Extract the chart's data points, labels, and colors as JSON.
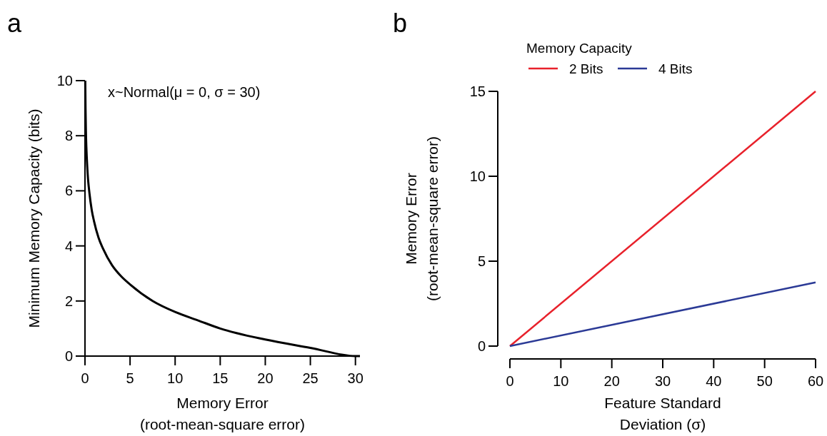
{
  "chart_data": [
    {
      "type": "line",
      "title": "a",
      "xlabel": "Memory Error\n(root-mean-square error)",
      "ylabel": "Minimum Memory Capacity (bits)",
      "annotations": [
        "x~Normal(μ = 0, σ = 30)"
      ],
      "xlim": [
        0,
        30.5
      ],
      "ylim": [
        0,
        10
      ],
      "xticks": [
        0,
        5,
        10,
        15,
        20,
        25,
        30
      ],
      "yticks": [
        0,
        2,
        4,
        6,
        8,
        10
      ],
      "x": [
        0.03,
        0.06,
        0.1,
        0.15,
        0.2,
        0.3,
        0.5,
        0.75,
        1,
        1.5,
        2,
        3,
        4,
        5,
        7.5,
        10,
        12.5,
        15,
        20,
        25,
        30,
        30.5
      ],
      "series": [
        {
          "color": "#000000",
          "values": [
            10,
            9,
            8.2,
            7.6,
            7.2,
            6.6,
            5.9,
            5.3,
            4.9,
            4.3,
            3.9,
            3.3,
            2.9,
            2.6,
            2,
            1.6,
            1.3,
            1,
            0.6,
            0.3,
            0,
            0
          ]
        }
      ]
    },
    {
      "type": "line",
      "title": "b",
      "xlabel": "Feature Standard\nDeviation (σ)",
      "ylabel": "Memory Error\n(root-mean-square error)",
      "legend_title": "Memory Capacity",
      "legend": "top",
      "xlim": [
        0,
        60
      ],
      "ylim": [
        0,
        15
      ],
      "xticks": [
        0,
        10,
        20,
        30,
        40,
        50,
        60
      ],
      "yticks": [
        0,
        5,
        10,
        15
      ],
      "x": [
        0,
        60
      ],
      "series": [
        {
          "name": "2 Bits",
          "color": "#e8212b",
          "values": [
            0,
            15
          ]
        },
        {
          "name": "4 Bits",
          "color": "#2b3a96",
          "values": [
            0,
            3.75
          ]
        }
      ]
    }
  ]
}
